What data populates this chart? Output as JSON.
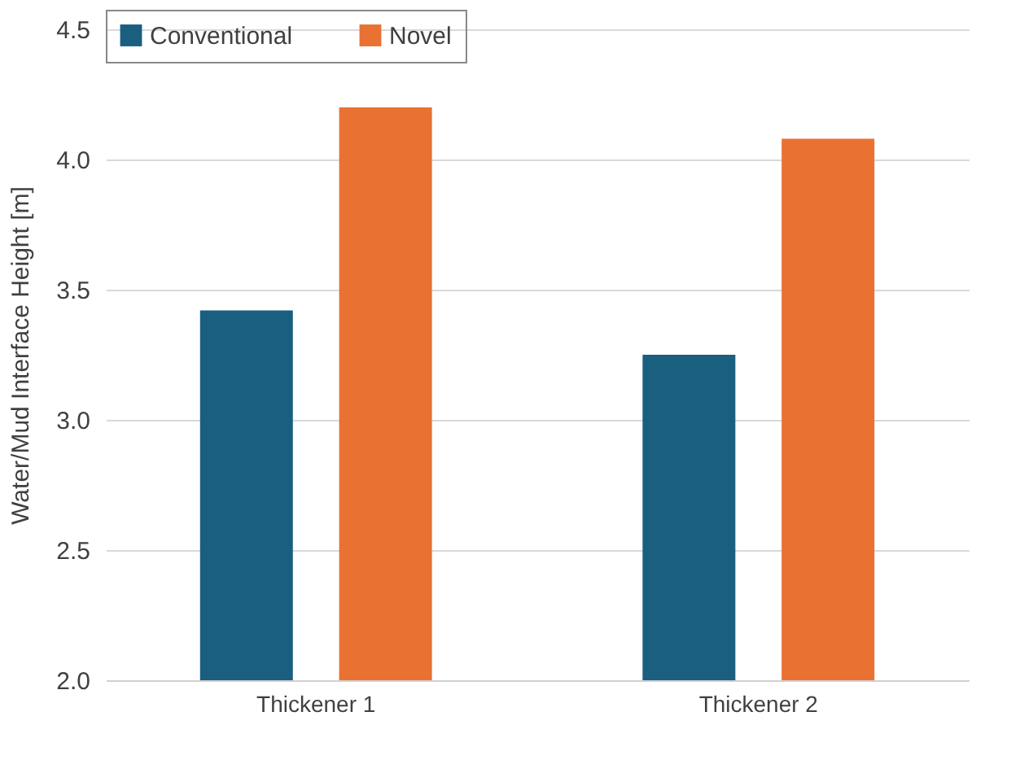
{
  "chart_data": {
    "type": "bar",
    "ylabel": "Water/Mud Interface Height [m]",
    "categories": [
      "Thickener 1",
      "Thickener 2"
    ],
    "series": [
      {
        "name": "Conventional",
        "color": "#1a5e80",
        "values": [
          3.42,
          3.25
        ]
      },
      {
        "name": "Novel",
        "color": "#e97132",
        "values": [
          4.2,
          4.08
        ]
      }
    ],
    "ylim": [
      2.0,
      4.5
    ],
    "yticks": [
      {
        "value": 2.0,
        "label": "2.0"
      },
      {
        "value": 2.5,
        "label": "2.5"
      },
      {
        "value": 3.0,
        "label": "3.0"
      },
      {
        "value": 3.5,
        "label": "3.5"
      },
      {
        "value": 4.0,
        "label": "4.0"
      },
      {
        "value": 4.5,
        "label": "4.5"
      }
    ],
    "grid": "y",
    "legend": "top"
  }
}
